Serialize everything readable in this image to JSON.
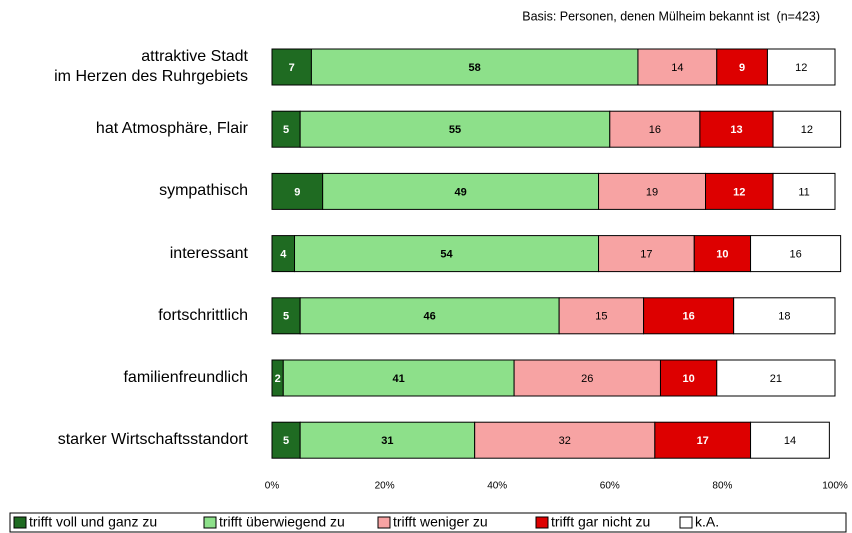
{
  "chart_data": {
    "type": "stacked_barh",
    "subtitle": "Basis: Personen, denen Mülheim bekannt ist  (n=423)",
    "categories": [
      "attraktive Stadt\nim Herzen des Ruhrgebiets",
      "hat Atmosphäre, Flair",
      "sympathisch",
      "interessant",
      "fortschrittlich",
      "familienfreundlich",
      "starker Wirtschaftsstandort"
    ],
    "series": [
      {
        "name": "trifft voll und ganz zu",
        "color": "#1f6b22",
        "text_color": "#ffffff",
        "bold": true,
        "values": [
          7,
          5,
          9,
          4,
          5,
          2,
          5
        ]
      },
      {
        "name": "trifft überwiegend zu",
        "color": "#8de08a",
        "text_color": "#000000",
        "bold": true,
        "values": [
          58,
          55,
          49,
          54,
          46,
          41,
          31
        ]
      },
      {
        "name": "trifft weniger zu",
        "color": "#f7a3a3",
        "text_color": "#000000",
        "bold": false,
        "values": [
          14,
          16,
          19,
          17,
          15,
          26,
          32
        ]
      },
      {
        "name": "trifft gar nicht zu",
        "color": "#dd0000",
        "text_color": "#ffffff",
        "bold": true,
        "values": [
          9,
          13,
          12,
          10,
          16,
          10,
          17
        ]
      },
      {
        "name": "k.A.",
        "color": "#ffffff",
        "text_color": "#000000",
        "bold": false,
        "values": [
          12,
          12,
          11,
          16,
          18,
          21,
          14
        ]
      }
    ],
    "xlim": [
      0,
      100
    ],
    "xticks": [
      {
        "value": 0,
        "label": "0%"
      },
      {
        "value": 20,
        "label": "20%"
      },
      {
        "value": 40,
        "label": "40%"
      },
      {
        "value": 60,
        "label": "60%"
      },
      {
        "value": 80,
        "label": "80%"
      },
      {
        "value": 100,
        "label": "100%"
      }
    ],
    "legend": "bottom"
  }
}
